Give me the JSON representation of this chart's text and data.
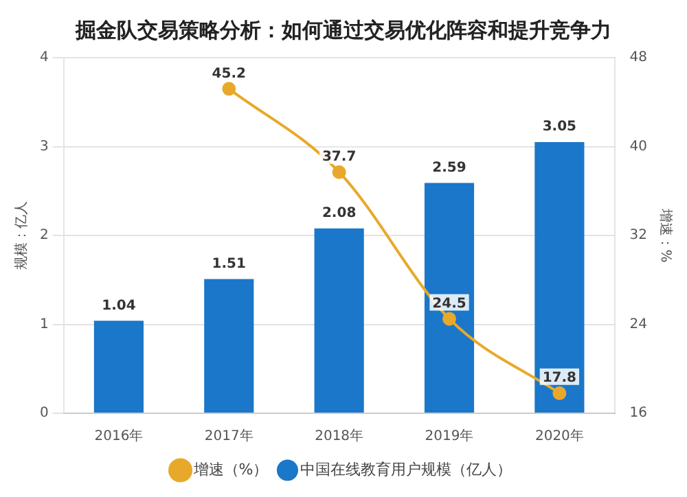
{
  "chart_data": {
    "type": "bar",
    "title": "掘金队交易策略分析：如何通过交易优化阵容和提升竞争力",
    "categories": [
      "2016年",
      "2017年",
      "2018年",
      "2019年",
      "2020年"
    ],
    "series": [
      {
        "name": "中国在线教育用户规模（亿人）",
        "color": "#1a77c9",
        "values": [
          1.04,
          1.51,
          2.08,
          2.59,
          3.05
        ]
      },
      {
        "name": "增速（%）",
        "type": "line",
        "axis": "y2",
        "color": "#e8a92a",
        "values": [
          null,
          45.2,
          37.7,
          24.5,
          17.8
        ]
      }
    ],
    "ylabel": "规模：亿人",
    "y2label": "增速：%",
    "ylim": [
      0,
      4
    ],
    "yticks": [
      0,
      1,
      2,
      3,
      4
    ],
    "y2lim": [
      16,
      48
    ],
    "y2ticks": [
      16,
      24,
      32,
      40,
      48
    ],
    "grid": "y",
    "legend": "bottom",
    "marker": "circle",
    "data_labels": true
  }
}
